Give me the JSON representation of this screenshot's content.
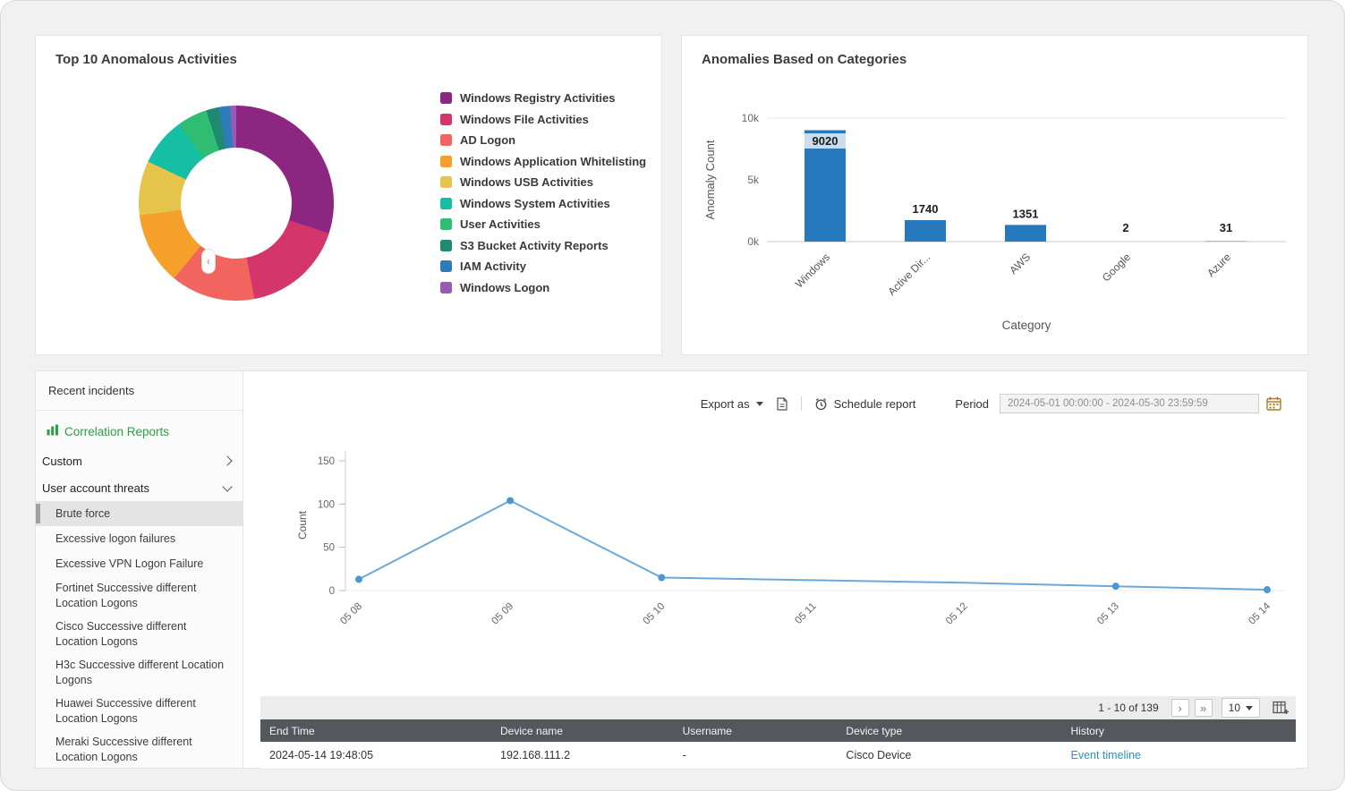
{
  "cards": {
    "donut": {
      "title": "Top 10 Anomalous Activities"
    },
    "bars": {
      "title": "Anomalies Based on Categories"
    }
  },
  "sidebar": {
    "recent_incidents": "Recent incidents",
    "correlation_reports": "Correlation Reports",
    "collapse_icon": "‹",
    "groups": [
      {
        "label": "Custom",
        "chevron": "right"
      },
      {
        "label": "User account threats",
        "chevron": "down"
      }
    ],
    "items": [
      {
        "label": "Brute force",
        "selected": true
      },
      {
        "label": "Excessive logon failures"
      },
      {
        "label": "Excessive VPN Logon Failure"
      },
      {
        "label": "Fortinet Successive different Location Logons"
      },
      {
        "label": "Cisco Successive different Location Logons"
      },
      {
        "label": "H3c Successive different Location Logons"
      },
      {
        "label": "Huawei Successive different Location Logons"
      },
      {
        "label": "Meraki Successive different Location Logons"
      }
    ]
  },
  "toolbar": {
    "export_label": "Export as",
    "schedule_label": "Schedule report",
    "period_label": "Period",
    "period_value": "2024-05-01 00:00:00 - 2024-05-30 23:59:59"
  },
  "pagination": {
    "range_text": "1 - 10 of 139",
    "page_size": "10",
    "next_icon": "›",
    "last_icon": "»"
  },
  "table": {
    "columns": [
      "End Time",
      "Device name",
      "Username",
      "Device type",
      "History"
    ],
    "rows": [
      [
        "2024-05-14 19:48:05",
        "192.168.111.2",
        "-",
        "Cisco Device",
        "Event timeline"
      ]
    ]
  },
  "chart_data": [
    {
      "type": "pie",
      "donut": true,
      "title": "Top 10 Anomalous Activities",
      "labels": [
        "Windows Registry Activities",
        "Windows File Activities",
        "AD Logon",
        "Windows Application Whitelisting",
        "Windows USB Activities",
        "Windows System Activities",
        "User Activities",
        "S3 Bucket Activity Reports",
        "IAM Activity",
        "Windows Logon"
      ],
      "values": [
        30,
        17,
        14,
        12,
        9,
        8,
        5,
        2,
        2,
        1
      ],
      "values_unit": "percent_estimated",
      "colors": [
        "#8C2680",
        "#D4356B",
        "#F2655E",
        "#F5A02A",
        "#E6C44C",
        "#16BFA3",
        "#2EBD72",
        "#1F8A70",
        "#2C7CB8",
        "#9B59B6"
      ],
      "legend_position": "right"
    },
    {
      "type": "bar",
      "title": "Anomalies Based on Categories",
      "categories": [
        "Windows",
        "Active Dir...",
        "AWS",
        "Google",
        "Azure"
      ],
      "values": [
        9020,
        1740,
        1351,
        2,
        31
      ],
      "xlabel": "Category",
      "ylabel": "Anomaly Count",
      "ylim": [
        0,
        10000
      ],
      "yticks": [
        "0k",
        "5k",
        "10k"
      ],
      "bar_color": "#2878BD",
      "grid": "top-line-and-baseline"
    },
    {
      "type": "line",
      "title": "",
      "x": [
        "05 08",
        "05 09",
        "05 10",
        "05 11",
        "05 12",
        "05 13",
        "05 14"
      ],
      "values": [
        13,
        104,
        15,
        12,
        9,
        5,
        1
      ],
      "dots": [
        true,
        true,
        true,
        false,
        false,
        true,
        true
      ],
      "ylabel": "Count",
      "ylim": [
        0,
        150
      ],
      "yticks": [
        0,
        50,
        100,
        150
      ],
      "line_color": "#6BA9DC",
      "point_color": "#4D96D2",
      "grid": "off"
    }
  ]
}
